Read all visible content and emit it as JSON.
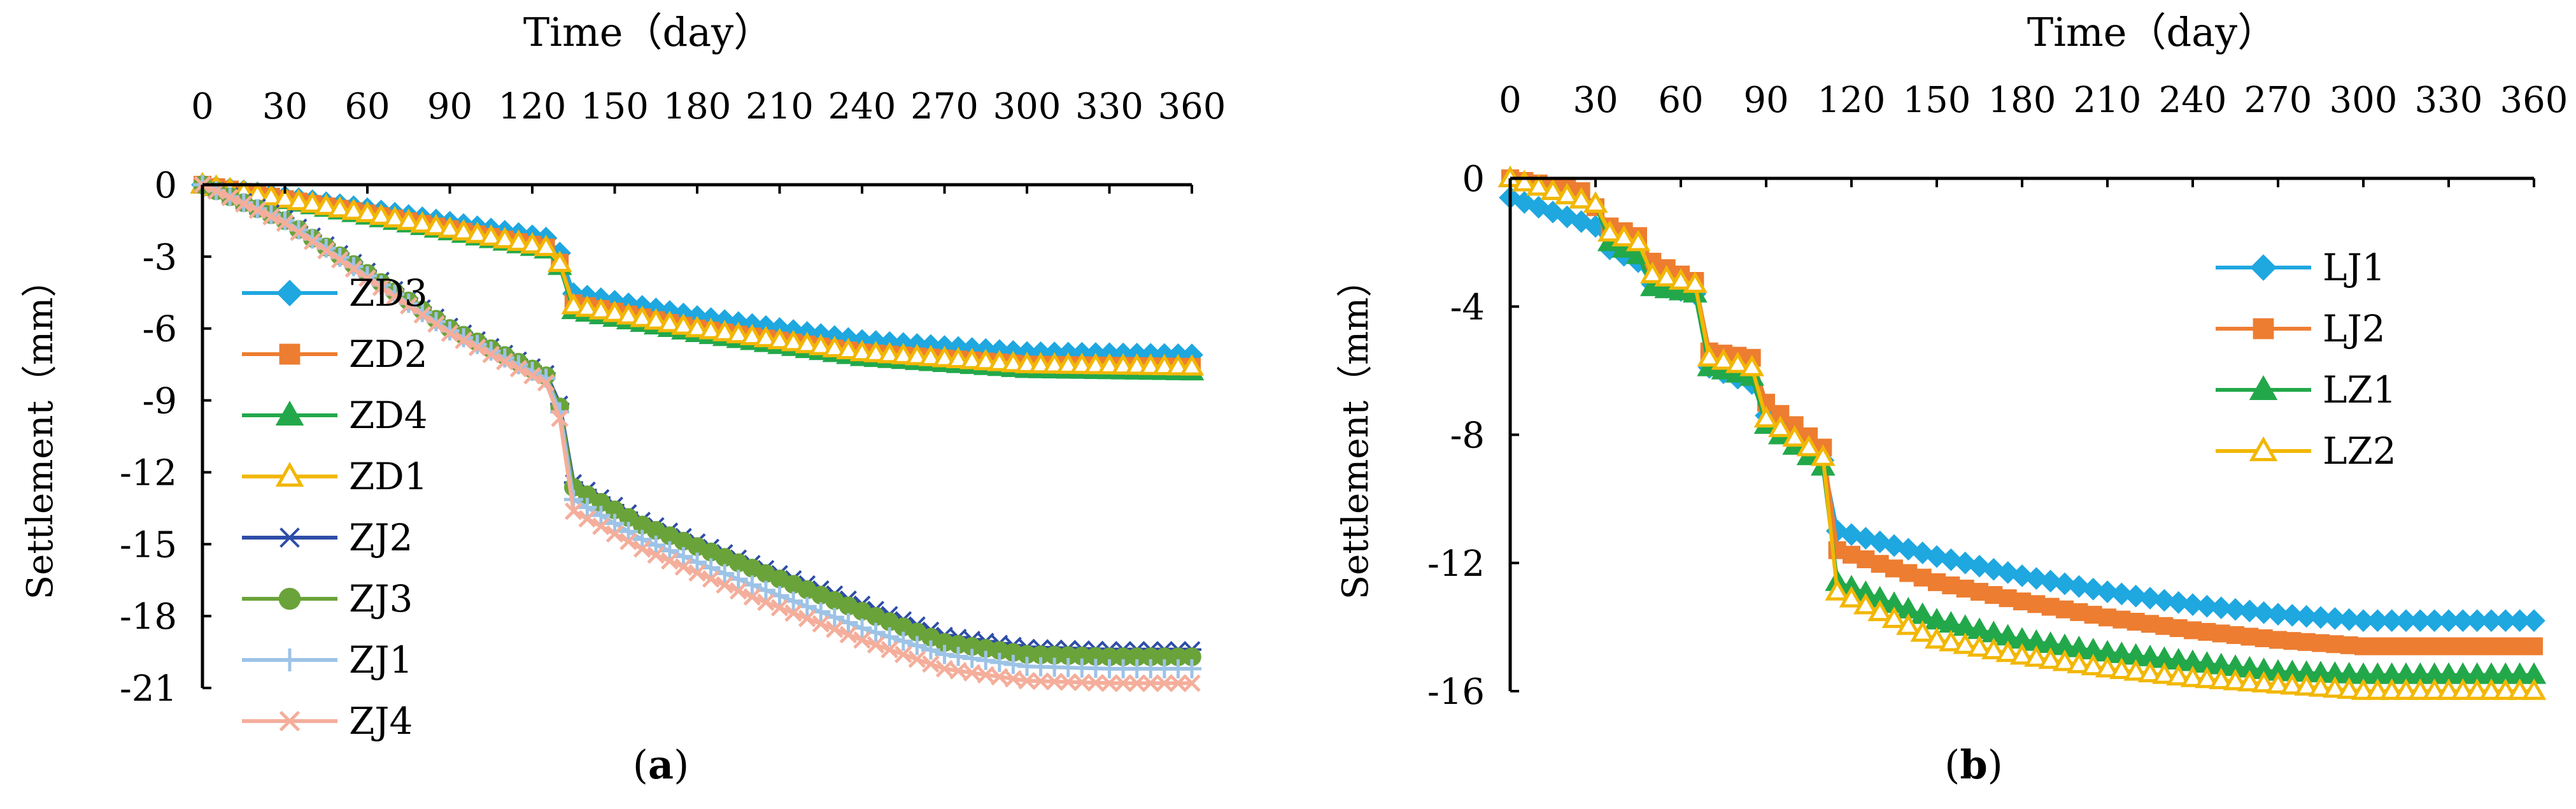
{
  "chart_data": [
    {
      "panel_label": "a",
      "type": "line",
      "title": "",
      "xlabel": "Time（day）",
      "ylabel": "Settlement（mm）",
      "xlim": [
        0,
        360
      ],
      "ylim": [
        -21,
        0
      ],
      "xticks": [
        0,
        30,
        60,
        90,
        120,
        150,
        180,
        210,
        240,
        270,
        300,
        330,
        360
      ],
      "yticks": [
        0,
        -3,
        -6,
        -9,
        -12,
        -15,
        -18,
        -21
      ],
      "legend_position": "left",
      "series": [
        {
          "name": "ZD3",
          "color": "#1FA7E0",
          "marker": "diamond",
          "filled": true,
          "points": [
            [
              0,
              0
            ],
            [
              60,
              -1.0
            ],
            [
              129,
              -2.3
            ],
            [
              133,
              -4.5
            ],
            [
              180,
              -5.5
            ],
            [
              240,
              -6.5
            ],
            [
              300,
              -7.0
            ],
            [
              360,
              -7.1
            ]
          ]
        },
        {
          "name": "ZD2",
          "color": "#ED7D31",
          "marker": "square",
          "filled": true,
          "points": [
            [
              0,
              0
            ],
            [
              60,
              -1.2
            ],
            [
              129,
              -2.7
            ],
            [
              133,
              -4.9
            ],
            [
              180,
              -6.0
            ],
            [
              240,
              -7.0
            ],
            [
              300,
              -7.5
            ],
            [
              360,
              -7.6
            ]
          ]
        },
        {
          "name": "ZD4",
          "color": "#22A84A",
          "marker": "triangle",
          "filled": true,
          "points": [
            [
              0,
              0
            ],
            [
              60,
              -1.3
            ],
            [
              129,
              -2.8
            ],
            [
              133,
              -5.2
            ],
            [
              180,
              -6.2
            ],
            [
              240,
              -7.2
            ],
            [
              300,
              -7.7
            ],
            [
              360,
              -7.8
            ]
          ]
        },
        {
          "name": "ZD1",
          "color": "#F2B705",
          "marker": "triangle",
          "filled": false,
          "points": [
            [
              0,
              0
            ],
            [
              60,
              -1.2
            ],
            [
              129,
              -2.7
            ],
            [
              133,
              -5.0
            ],
            [
              180,
              -6.0
            ],
            [
              240,
              -7.0
            ],
            [
              300,
              -7.5
            ],
            [
              360,
              -7.6
            ]
          ]
        },
        {
          "name": "ZJ2",
          "color": "#2E4DA7",
          "marker": "star",
          "filled": false,
          "points": [
            [
              0,
              0
            ],
            [
              30,
              -1.4
            ],
            [
              60,
              -3.6
            ],
            [
              90,
              -5.9
            ],
            [
              129,
              -8.1
            ],
            [
              133,
              -12.3
            ],
            [
              160,
              -14.0
            ],
            [
              200,
              -15.8
            ],
            [
              240,
              -17.5
            ],
            [
              270,
              -18.8
            ],
            [
              300,
              -19.3
            ],
            [
              330,
              -19.4
            ],
            [
              360,
              -19.4
            ]
          ]
        },
        {
          "name": "ZJ3",
          "color": "#6AA339",
          "marker": "circle",
          "filled": true,
          "points": [
            [
              0,
              0
            ],
            [
              30,
              -1.5
            ],
            [
              60,
              -3.7
            ],
            [
              90,
              -6.0
            ],
            [
              129,
              -8.2
            ],
            [
              133,
              -12.5
            ],
            [
              160,
              -14.2
            ],
            [
              200,
              -16.0
            ],
            [
              240,
              -17.8
            ],
            [
              270,
              -19.1
            ],
            [
              300,
              -19.6
            ],
            [
              330,
              -19.7
            ],
            [
              360,
              -19.7
            ]
          ]
        },
        {
          "name": "ZJ1",
          "color": "#9DC3E6",
          "marker": "plus",
          "filled": false,
          "points": [
            [
              0,
              0
            ],
            [
              30,
              -1.5
            ],
            [
              60,
              -3.8
            ],
            [
              90,
              -6.1
            ],
            [
              129,
              -8.3
            ],
            [
              133,
              -13.0
            ],
            [
              160,
              -14.8
            ],
            [
              200,
              -16.7
            ],
            [
              240,
              -18.5
            ],
            [
              270,
              -19.6
            ],
            [
              300,
              -20.1
            ],
            [
              330,
              -20.2
            ],
            [
              360,
              -20.2
            ]
          ]
        },
        {
          "name": "ZJ4",
          "color": "#F4AE9B",
          "marker": "x",
          "filled": false,
          "points": [
            [
              0,
              0
            ],
            [
              30,
              -1.6
            ],
            [
              60,
              -3.9
            ],
            [
              90,
              -6.2
            ],
            [
              129,
              -8.5
            ],
            [
              133,
              -13.5
            ],
            [
              160,
              -15.2
            ],
            [
              200,
              -17.2
            ],
            [
              240,
              -19.0
            ],
            [
              270,
              -20.2
            ],
            [
              300,
              -20.7
            ],
            [
              330,
              -20.8
            ],
            [
              360,
              -20.8
            ]
          ]
        }
      ]
    },
    {
      "panel_label": "b",
      "type": "line",
      "title": "",
      "xlabel": "Time（day）",
      "ylabel": "Settlement（mm）",
      "xlim": [
        0,
        360
      ],
      "ylim": [
        -16,
        0
      ],
      "xticks": [
        0,
        30,
        60,
        90,
        120,
        150,
        180,
        210,
        240,
        270,
        300,
        330,
        360
      ],
      "yticks": [
        0,
        -4,
        -8,
        -12,
        -16
      ],
      "legend_position": "right",
      "series": [
        {
          "name": "LJ1",
          "color": "#1FA7E0",
          "marker": "diamond",
          "filled": true,
          "points": [
            [
              0,
              -0.6
            ],
            [
              30,
              -1.5
            ],
            [
              35,
              -2.2
            ],
            [
              45,
              -2.6
            ],
            [
              50,
              -3.3
            ],
            [
              65,
              -3.6
            ],
            [
              70,
              -5.9
            ],
            [
              85,
              -6.4
            ],
            [
              90,
              -7.4
            ],
            [
              110,
              -8.8
            ],
            [
              115,
              -11.0
            ],
            [
              150,
              -11.8
            ],
            [
              180,
              -12.4
            ],
            [
              210,
              -12.9
            ],
            [
              240,
              -13.3
            ],
            [
              270,
              -13.6
            ],
            [
              300,
              -13.8
            ],
            [
              360,
              -13.8
            ]
          ]
        },
        {
          "name": "LJ2",
          "color": "#ED7D31",
          "marker": "square",
          "filled": true,
          "points": [
            [
              0,
              0
            ],
            [
              25,
              -0.4
            ],
            [
              30,
              -0.9
            ],
            [
              35,
              -1.5
            ],
            [
              45,
              -1.8
            ],
            [
              50,
              -2.6
            ],
            [
              65,
              -3.2
            ],
            [
              70,
              -5.4
            ],
            [
              85,
              -5.6
            ],
            [
              90,
              -7.0
            ],
            [
              110,
              -8.4
            ],
            [
              115,
              -11.6
            ],
            [
              150,
              -12.6
            ],
            [
              180,
              -13.2
            ],
            [
              210,
              -13.7
            ],
            [
              240,
              -14.1
            ],
            [
              270,
              -14.4
            ],
            [
              300,
              -14.6
            ],
            [
              360,
              -14.6
            ]
          ]
        },
        {
          "name": "LZ1",
          "color": "#22A84A",
          "marker": "triangle",
          "filled": true,
          "points": [
            [
              0,
              0
            ],
            [
              30,
              -0.8
            ],
            [
              35,
              -2.0
            ],
            [
              45,
              -2.4
            ],
            [
              50,
              -3.4
            ],
            [
              65,
              -3.6
            ],
            [
              70,
              -5.9
            ],
            [
              85,
              -6.2
            ],
            [
              90,
              -7.7
            ],
            [
              110,
              -9.0
            ],
            [
              115,
              -12.6
            ],
            [
              150,
              -13.8
            ],
            [
              180,
              -14.4
            ],
            [
              210,
              -14.8
            ],
            [
              240,
              -15.1
            ],
            [
              270,
              -15.4
            ],
            [
              300,
              -15.5
            ],
            [
              360,
              -15.5
            ]
          ]
        },
        {
          "name": "LZ2",
          "color": "#F2B705",
          "marker": "triangle",
          "filled": false,
          "points": [
            [
              0,
              0
            ],
            [
              30,
              -0.8
            ],
            [
              35,
              -1.7
            ],
            [
              45,
              -2.0
            ],
            [
              50,
              -3.0
            ],
            [
              65,
              -3.3
            ],
            [
              70,
              -5.6
            ],
            [
              85,
              -5.9
            ],
            [
              90,
              -7.5
            ],
            [
              110,
              -8.7
            ],
            [
              115,
              -12.9
            ],
            [
              150,
              -14.4
            ],
            [
              180,
              -14.9
            ],
            [
              210,
              -15.3
            ],
            [
              240,
              -15.6
            ],
            [
              270,
              -15.8
            ],
            [
              300,
              -16.0
            ],
            [
              360,
              -16.0
            ]
          ]
        }
      ]
    }
  ]
}
